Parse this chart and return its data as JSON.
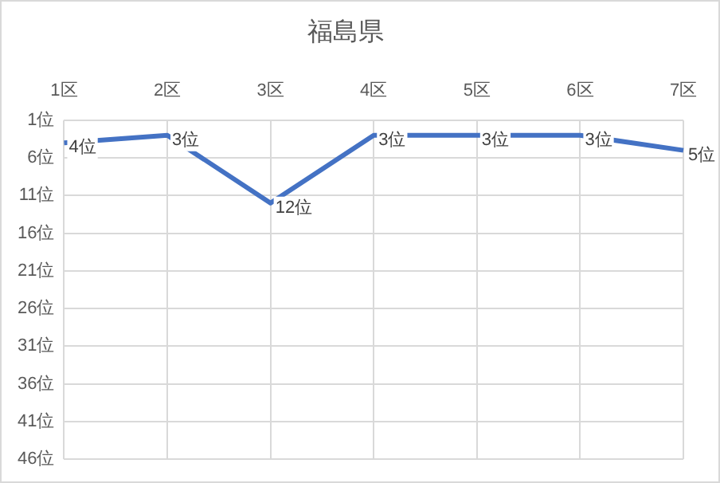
{
  "chart_data": {
    "type": "line",
    "title": "福島県",
    "categories": [
      "1区",
      "2区",
      "3区",
      "4区",
      "5区",
      "6区",
      "7区"
    ],
    "series": [
      {
        "color": "#4472c4",
        "values": [
          4,
          3,
          12,
          3,
          3,
          3,
          5
        ],
        "value_labels": [
          "4位",
          "3位",
          "12位",
          "3位",
          "3位",
          "3位",
          "5位"
        ]
      }
    ],
    "ylim": [
      46,
      1
    ],
    "yticks": [
      {
        "value": 1,
        "label": "1位"
      },
      {
        "value": 6,
        "label": "6位"
      },
      {
        "value": 11,
        "label": "11位"
      },
      {
        "value": 16,
        "label": "16位"
      },
      {
        "value": 21,
        "label": "21位"
      },
      {
        "value": 26,
        "label": "26位"
      },
      {
        "value": 31,
        "label": "31位"
      },
      {
        "value": 36,
        "label": "36位"
      },
      {
        "value": 41,
        "label": "41位"
      },
      {
        "value": 46,
        "label": "46位"
      }
    ],
    "grid": true,
    "legend": false,
    "marker": "none",
    "line_style": "solid"
  }
}
